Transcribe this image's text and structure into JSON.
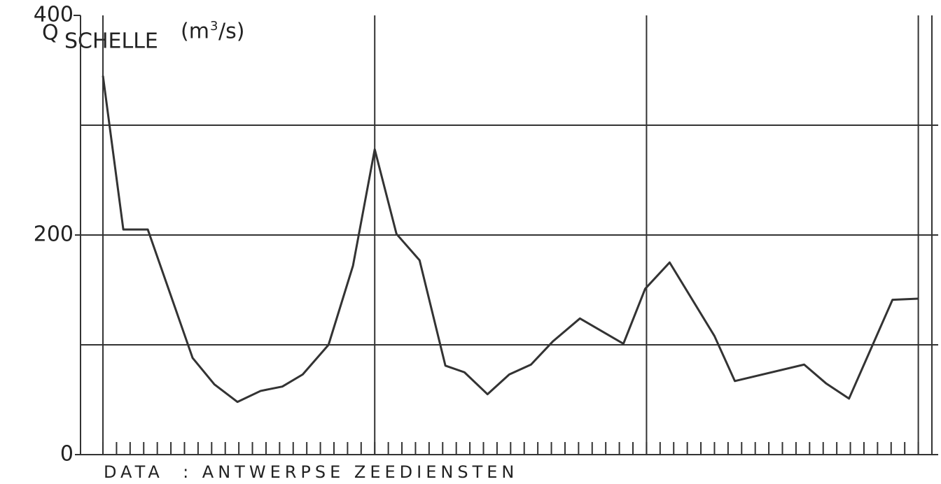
{
  "chart_data": {
    "type": "line",
    "y_label": {
      "symbol": "Q",
      "subscript": "SCHELLE",
      "unit_base": "(m",
      "unit_exp": "3",
      "unit_tail": "/s)"
    },
    "source": "DATA  : ANTWERPSE ZEEDIENSTEN",
    "x": [
      0,
      1.5,
      3.3,
      6.6,
      8.2,
      9.9,
      11.6,
      13.2,
      14.7,
      16.6,
      18.4,
      20,
      21.6,
      23.3,
      25.2,
      26.6,
      28.3,
      29.9,
      31.5,
      33.1,
      35.1,
      38.3,
      39.9,
      41.7,
      45,
      46.5,
      51.6,
      53.2,
      54.9,
      58.1,
      60
    ],
    "series": [
      {
        "color": "#333333",
        "values": [
          345,
          205,
          205,
          88,
          64,
          48,
          58,
          62,
          73,
          100,
          172,
          278,
          201,
          177,
          81,
          75,
          55,
          73,
          82,
          103,
          124,
          101,
          151,
          175,
          108,
          67,
          82,
          65,
          51,
          141,
          142
        ]
      }
    ],
    "xlim": [
      -1.65,
      61
    ],
    "xticks": [
      0,
      1,
      2,
      3,
      4,
      5,
      6,
      7,
      8,
      9,
      10,
      11,
      12,
      13,
      14,
      15,
      16,
      17,
      18,
      19,
      20,
      21,
      22,
      23,
      24,
      25,
      26,
      27,
      28,
      29,
      30,
      31,
      32,
      33,
      34,
      35,
      36,
      37,
      38,
      39,
      40,
      41,
      42,
      43,
      44,
      45,
      46,
      47,
      48,
      49,
      50,
      51,
      52,
      53,
      54,
      55,
      56,
      57,
      58,
      59,
      60
    ],
    "xgrid": [
      0,
      20,
      40,
      60
    ],
    "ylim": [
      0,
      400
    ],
    "yticks": [
      0,
      200,
      400
    ],
    "ygrid": [
      100,
      200,
      300
    ],
    "grid": true
  }
}
